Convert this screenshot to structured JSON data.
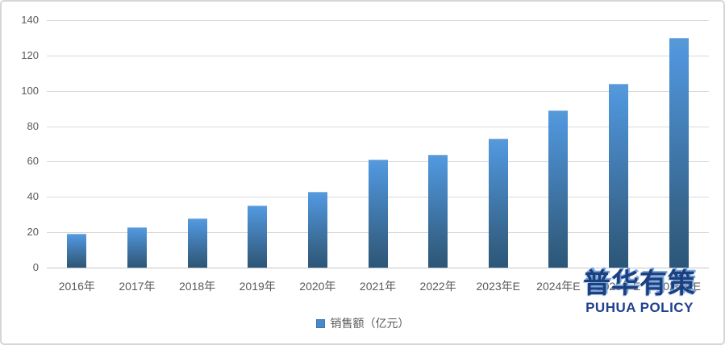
{
  "chart_data": {
    "type": "bar",
    "title": "",
    "categories": [
      "2016年",
      "2017年",
      "2018年",
      "2019年",
      "2020年",
      "2021年",
      "2022年",
      "2023年E",
      "2024年E",
      "2025年E",
      "2026年E"
    ],
    "values": [
      19,
      23,
      28,
      35,
      43,
      61,
      64,
      73,
      89,
      104,
      130
    ],
    "series_name": "销售额（亿元）",
    "xlabel": "",
    "ylabel": "",
    "ylim": [
      0,
      140
    ],
    "yticks": [
      0,
      20,
      40,
      60,
      80,
      100,
      120,
      140
    ],
    "grid": true,
    "legend_position": "bottom-center",
    "bar_color_top": "#5b9bd5",
    "bar_color_bottom": "#2b5679"
  },
  "legend": {
    "label": "销售额（亿元）"
  },
  "watermark": {
    "chinese": "普华有策",
    "english": "PUHUA POLICY"
  },
  "colors": {
    "gridline": "#d9d9d9",
    "axis_text": "#595959",
    "legend_swatch": "#4a89c8",
    "logo_navy": "#1e3f7e",
    "logo_highlight": "#6fa3dd"
  }
}
